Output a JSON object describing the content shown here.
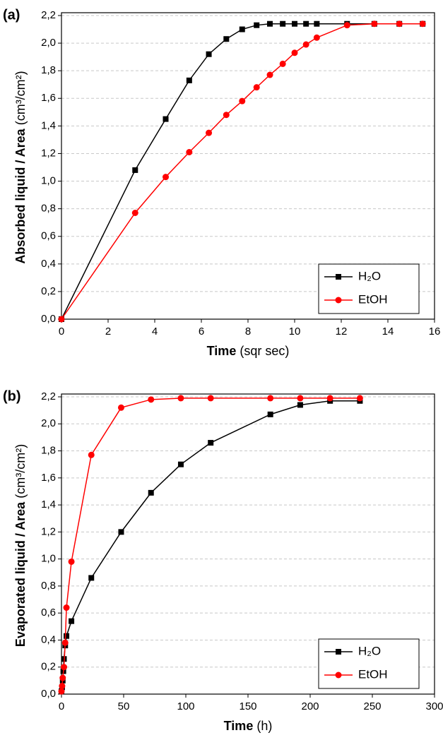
{
  "chart_data": [
    {
      "type": "line",
      "panel": "(a)",
      "xlabel": "Time",
      "xlabel_unit": "(sqr sec)",
      "ylabel": "Absorbed liquid / Area",
      "ylabel_unit": "(cm³/cm²)",
      "xlim": [
        0,
        16
      ],
      "xticks": [
        0,
        2,
        4,
        6,
        8,
        10,
        12,
        14,
        16
      ],
      "ylim": [
        0,
        2.2
      ],
      "yticks": [
        {
          "value": 0,
          "label": "0,0"
        },
        {
          "value": 0.2,
          "label": "0,2"
        },
        {
          "value": 0.4,
          "label": "0,4"
        },
        {
          "value": 0.6,
          "label": "0,6"
        },
        {
          "value": 0.8,
          "label": "0,8"
        },
        {
          "value": 1.0,
          "label": "1,0"
        },
        {
          "value": 1.2,
          "label": "1,2"
        },
        {
          "value": 1.4,
          "label": "1,4"
        },
        {
          "value": 1.6,
          "label": "1,6"
        },
        {
          "value": 1.8,
          "label": "1,8"
        },
        {
          "value": 2.0,
          "label": "2,0"
        },
        {
          "value": 2.2,
          "label": "2,2"
        }
      ],
      "grid": true,
      "legend": "lower right",
      "series": [
        {
          "name": "H₂O",
          "color": "#000000",
          "marker": "square",
          "x": [
            0,
            3.16,
            4.47,
            5.48,
            6.32,
            7.07,
            7.75,
            8.37,
            8.94,
            9.49,
            10,
            10.49,
            10.95,
            12.25,
            13.42,
            14.49,
            15.49
          ],
          "values": [
            0,
            1.08,
            1.45,
            1.73,
            1.92,
            2.03,
            2.1,
            2.13,
            2.14,
            2.14,
            2.14,
            2.14,
            2.14,
            2.14,
            2.14,
            2.14,
            2.14
          ]
        },
        {
          "name": "EtOH",
          "color": "#ff0000",
          "marker": "circle",
          "x": [
            0,
            3.16,
            4.47,
            5.48,
            6.32,
            7.07,
            7.75,
            8.37,
            8.94,
            9.49,
            10,
            10.49,
            10.95,
            12.25,
            13.42,
            14.49,
            15.49
          ],
          "values": [
            0,
            0.77,
            1.03,
            1.21,
            1.35,
            1.48,
            1.58,
            1.68,
            1.77,
            1.85,
            1.93,
            1.99,
            2.04,
            2.13,
            2.14,
            2.14,
            2.14
          ]
        }
      ]
    },
    {
      "type": "line",
      "panel": "(b)",
      "xlabel": "Time",
      "xlabel_unit": "(h)",
      "ylabel": "Evaporated liquid / Area",
      "ylabel_unit": "(cm³/cm²)",
      "xlim": [
        0,
        300
      ],
      "xticks": [
        0,
        50,
        100,
        150,
        200,
        250,
        300
      ],
      "ylim": [
        0,
        2.2
      ],
      "yticks": [
        {
          "value": 0,
          "label": "0,0"
        },
        {
          "value": 0.2,
          "label": "0,2"
        },
        {
          "value": 0.4,
          "label": "0,4"
        },
        {
          "value": 0.6,
          "label": "0,6"
        },
        {
          "value": 0.8,
          "label": "0,8"
        },
        {
          "value": 1.0,
          "label": "1,0"
        },
        {
          "value": 1.2,
          "label": "1,2"
        },
        {
          "value": 1.4,
          "label": "1,4"
        },
        {
          "value": 1.6,
          "label": "1,6"
        },
        {
          "value": 1.8,
          "label": "1,8"
        },
        {
          "value": 2.0,
          "label": "2,0"
        },
        {
          "value": 2.2,
          "label": "2,2"
        }
      ],
      "grid": true,
      "legend": "lower right",
      "series": [
        {
          "name": "H₂O",
          "color": "#000000",
          "marker": "square",
          "x": [
            0,
            0.5,
            1,
            1.5,
            2,
            3,
            4,
            8,
            24,
            48,
            72,
            96,
            120,
            168,
            192,
            216,
            240
          ],
          "values": [
            0.02,
            0.05,
            0.1,
            0.17,
            0.26,
            0.36,
            0.43,
            0.54,
            0.86,
            1.2,
            1.49,
            1.7,
            1.86,
            2.07,
            2.14,
            2.17,
            2.17
          ]
        },
        {
          "name": "EtOH",
          "color": "#ff0000",
          "marker": "circle",
          "x": [
            0,
            0.5,
            1,
            2,
            3,
            4,
            8,
            24,
            48,
            72,
            96,
            120,
            168,
            192,
            216,
            240
          ],
          "values": [
            0.02,
            0.06,
            0.12,
            0.2,
            0.38,
            0.64,
            0.98,
            1.77,
            2.12,
            2.18,
            2.19,
            2.19,
            2.19,
            2.19,
            2.19,
            2.19
          ]
        }
      ]
    }
  ]
}
